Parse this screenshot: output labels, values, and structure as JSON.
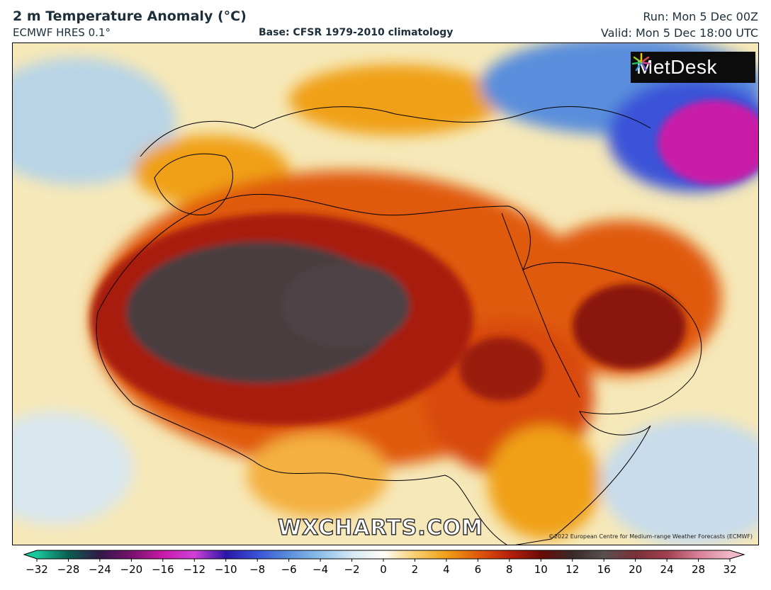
{
  "header": {
    "title": "2 m Temperature Anomaly (°C)",
    "model": "ECMWF HRES 0.1°",
    "base": "Base: CFSR 1979-2010 climatology",
    "run": "Run: Mon 5 Dec 00Z",
    "valid": "Valid: Mon 5 Dec 18:00 UTC"
  },
  "map": {
    "logo": "MetDesk",
    "watermark": "WXCHARTS.COM",
    "copyright": "©2022 European Centre for Medium-range Weather Forecasts (ECMWF)"
  },
  "colorbar": {
    "ticks": [
      -32,
      -28,
      -24,
      -20,
      -16,
      -12,
      -10,
      -8,
      -6,
      -4,
      -2,
      0,
      2,
      4,
      6,
      8,
      10,
      12,
      16,
      20,
      24,
      28,
      32
    ],
    "stops": [
      {
        "v": -32,
        "color": "#19c79a"
      },
      {
        "v": -28,
        "color": "#0a5e52"
      },
      {
        "v": -24,
        "color": "#321848"
      },
      {
        "v": -20,
        "color": "#78126e"
      },
      {
        "v": -16,
        "color": "#c81aa8"
      },
      {
        "v": -12,
        "color": "#d040d8"
      },
      {
        "v": -10,
        "color": "#2a16a8"
      },
      {
        "v": -8,
        "color": "#3a52d8"
      },
      {
        "v": -6,
        "color": "#5a8edc"
      },
      {
        "v": -4,
        "color": "#8ec0e8"
      },
      {
        "v": -2,
        "color": "#d4e8f4"
      },
      {
        "v": 0,
        "color": "#fffef8"
      },
      {
        "v": 2,
        "color": "#f8d070"
      },
      {
        "v": 4,
        "color": "#f0a018"
      },
      {
        "v": 6,
        "color": "#e05a0c"
      },
      {
        "v": 8,
        "color": "#b8200c"
      },
      {
        "v": 10,
        "color": "#6a0a06"
      },
      {
        "v": 12,
        "color": "#3a2a2a"
      },
      {
        "v": 16,
        "color": "#5a5050"
      },
      {
        "v": 20,
        "color": "#7a3038"
      },
      {
        "v": 24,
        "color": "#a04050"
      },
      {
        "v": 28,
        "color": "#d88098"
      },
      {
        "v": 32,
        "color": "#f0b8c8"
      }
    ]
  }
}
